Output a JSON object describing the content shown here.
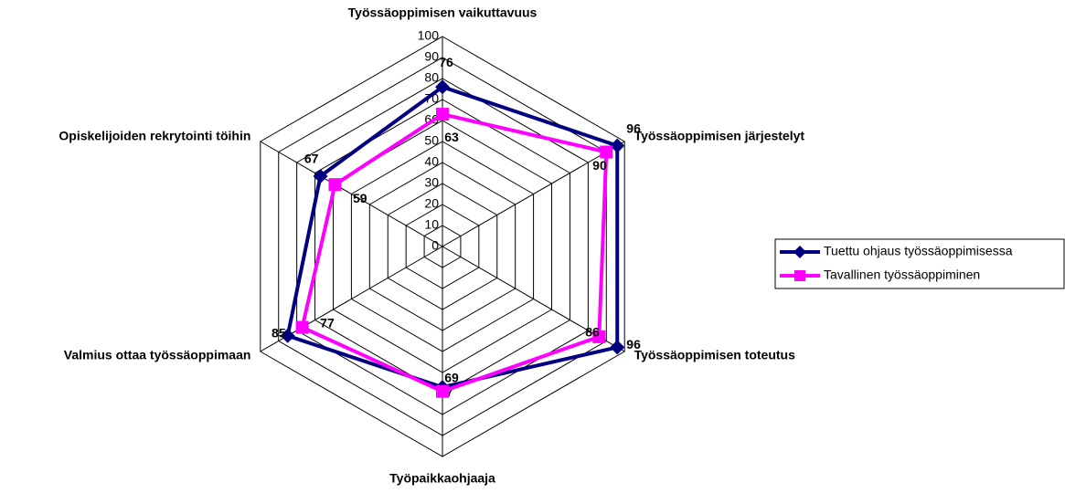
{
  "chart_data": {
    "type": "radar",
    "categories": [
      "Työssäoppimisen vaikuttavuus",
      "Työssäoppimisen järjestelyt",
      "Työssäoppimisen toteutus",
      "Työpaikkaohjaaja",
      "Valmius ottaa työssäoppimaan",
      "Opiskelijoiden rekrytointi töihin"
    ],
    "series": [
      {
        "name": "Tuettu ohjaus työssäoppimisessa",
        "color": "#000080",
        "values": [
          76,
          96,
          96,
          67,
          85,
          67
        ]
      },
      {
        "name": "Tavallinen työssäoppiminen",
        "color": "#ff00ff",
        "values": [
          63,
          90,
          86,
          69,
          77,
          59
        ]
      }
    ],
    "ylim": [
      0,
      100
    ],
    "yticks": [
      0,
      10,
      20,
      30,
      40,
      50,
      60,
      70,
      80,
      90,
      100
    ],
    "grid": true,
    "legend": "right"
  }
}
